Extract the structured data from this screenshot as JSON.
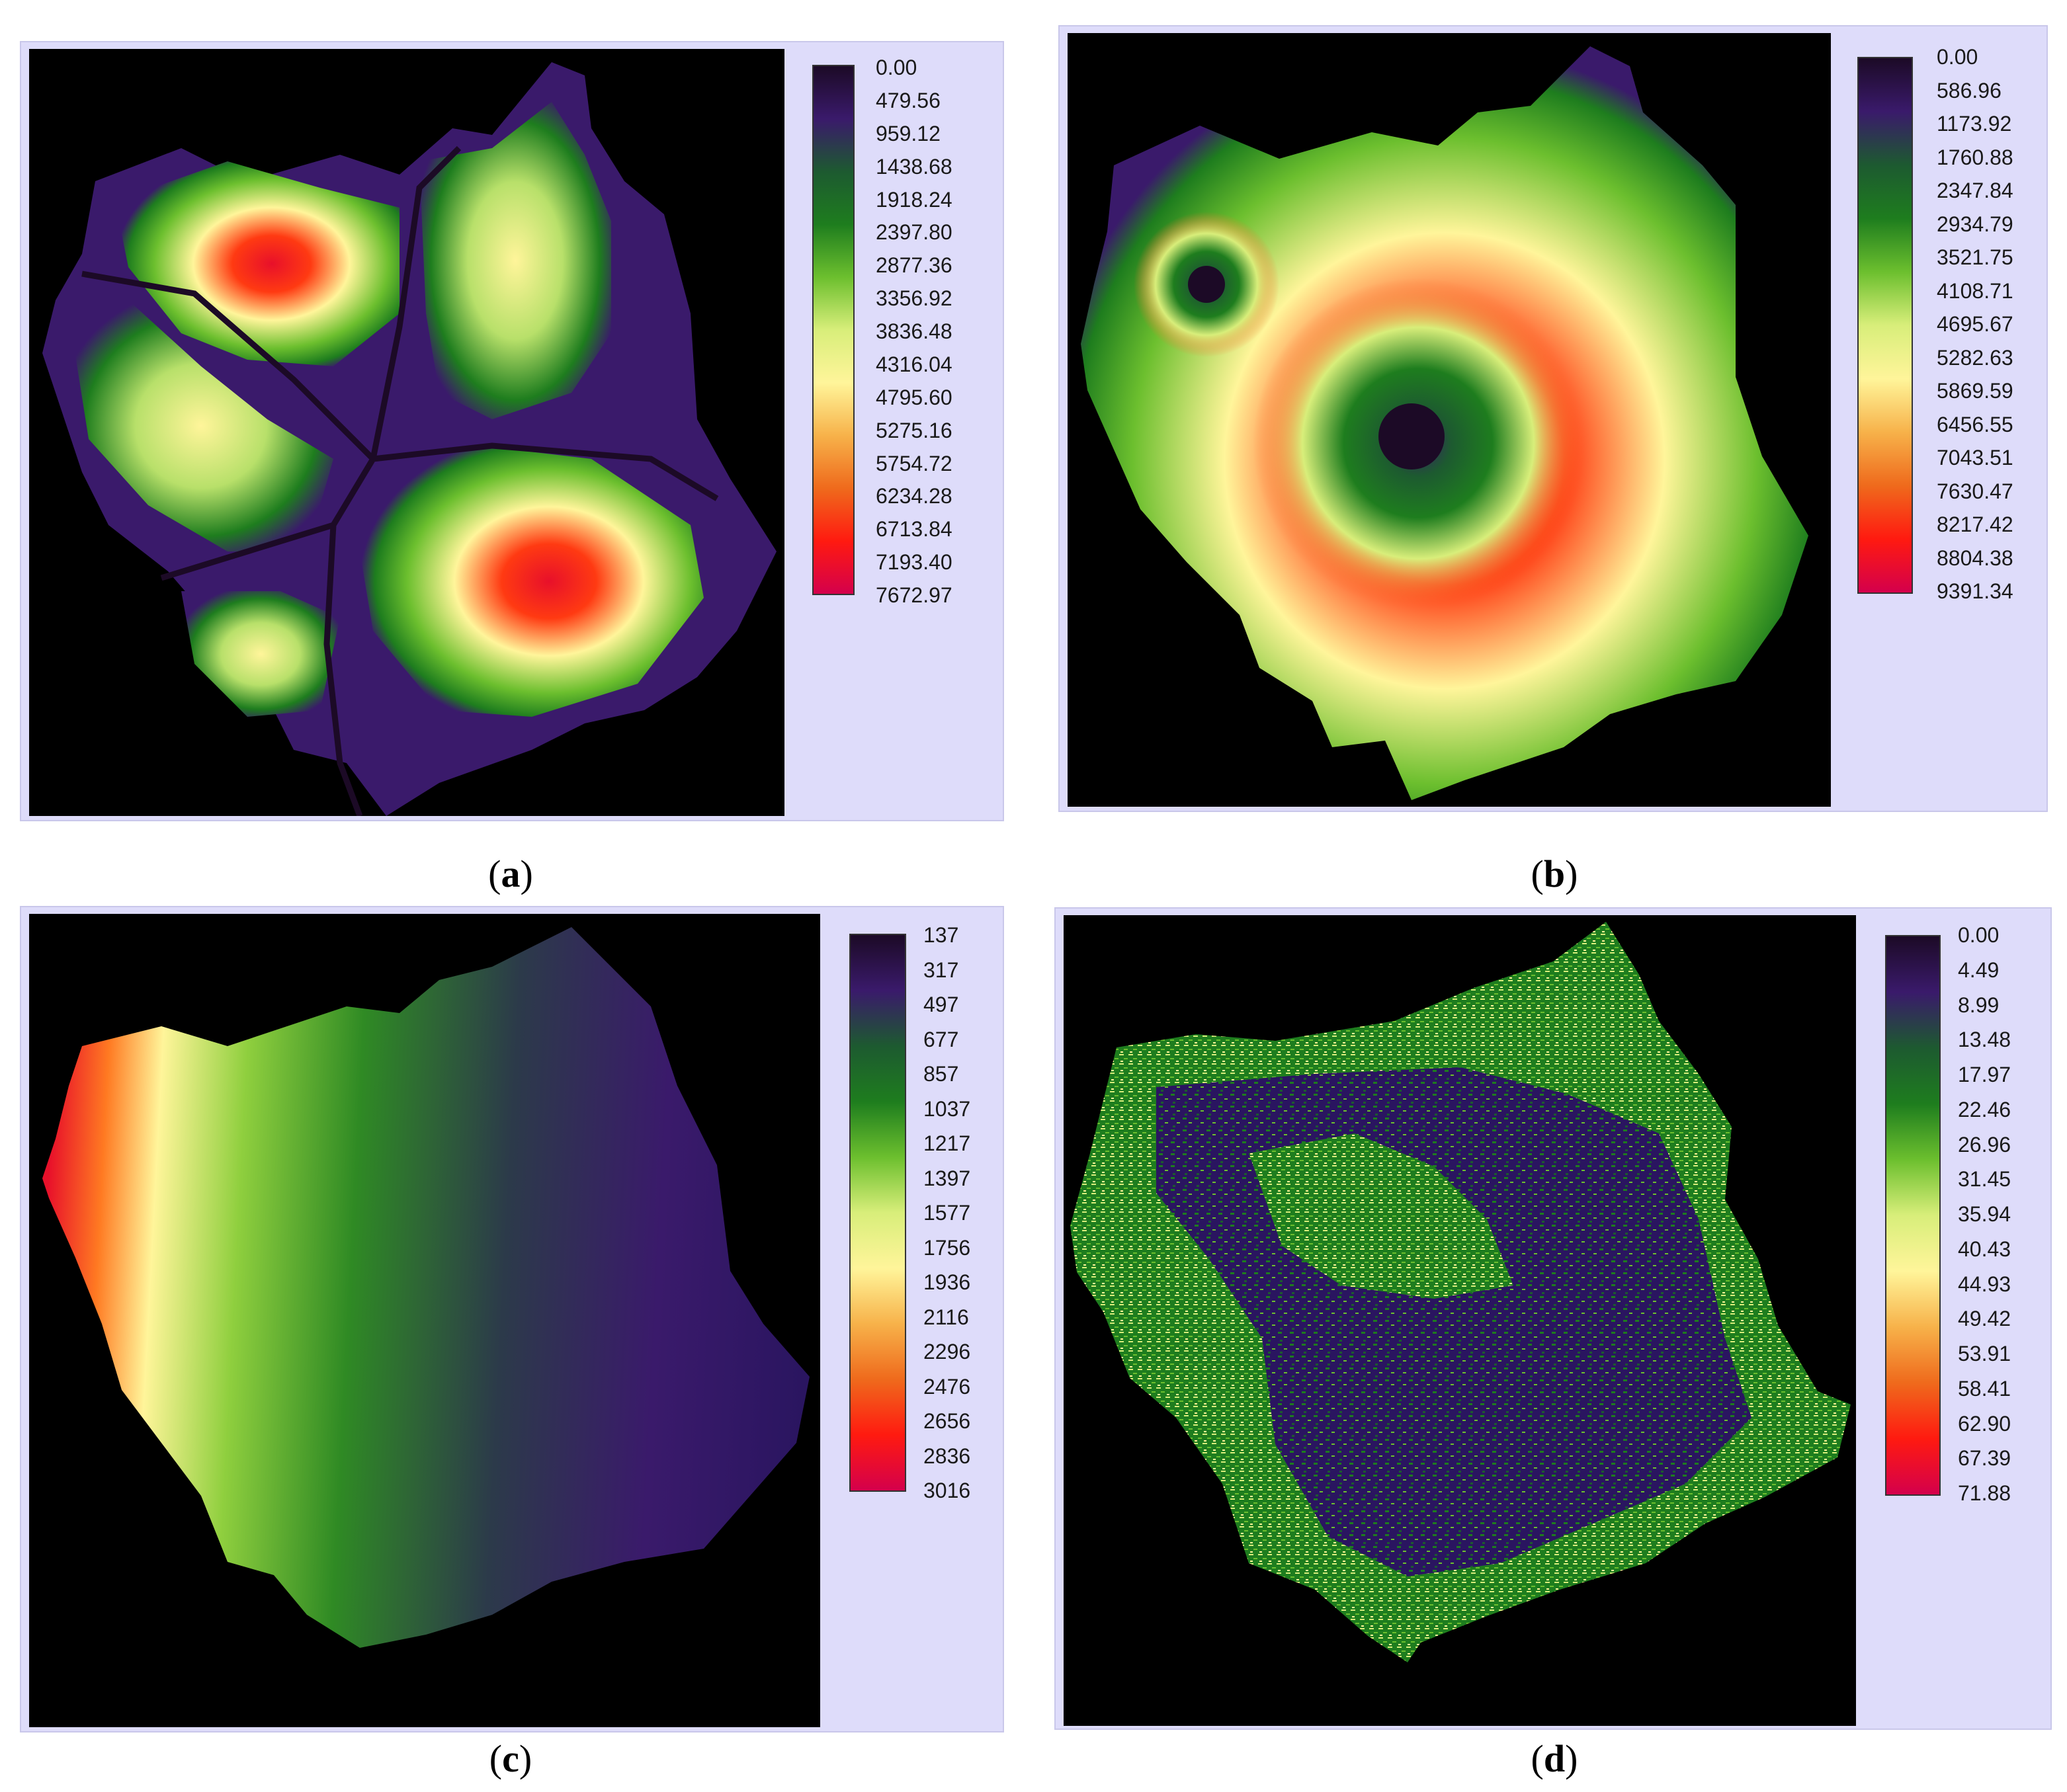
{
  "panels": [
    {
      "caption_letter": "a",
      "legend": [
        "0.00",
        "479.56",
        "959.12",
        "1438.68",
        "1918.24",
        "2397.80",
        "2877.36",
        "3356.92",
        "3836.48",
        "4316.04",
        "4795.60",
        "5275.16",
        "5754.72",
        "6234.28",
        "6713.84",
        "7193.40",
        "7672.97"
      ]
    },
    {
      "caption_letter": "b",
      "legend": [
        "0.00",
        "586.96",
        "1173.92",
        "1760.88",
        "2347.84",
        "2934.79",
        "3521.75",
        "4108.71",
        "4695.67",
        "5282.63",
        "5869.59",
        "6456.55",
        "7043.51",
        "7630.47",
        "8217.42",
        "8804.38",
        "9391.34"
      ]
    },
    {
      "caption_letter": "c",
      "legend": [
        "137",
        "317",
        "497",
        "677",
        "857",
        "1037",
        "1217",
        "1397",
        "1577",
        "1756",
        "1936",
        "2116",
        "2296",
        "2476",
        "2656",
        "2836",
        "3016"
      ]
    },
    {
      "caption_letter": "d",
      "legend": [
        "0.00",
        "4.49",
        "8.99",
        "13.48",
        "17.97",
        "22.46",
        "26.96",
        "31.45",
        "35.94",
        "40.43",
        "44.93",
        "49.42",
        "53.91",
        "58.41",
        "62.90",
        "67.39",
        "71.88"
      ]
    }
  ],
  "colors": {
    "panel_background": "#dedcfa",
    "map_background": "#000000",
    "ramp": [
      "#1c0a26",
      "#3a1a6b",
      "#1d5a30",
      "#1e7d1e",
      "#6cbf2e",
      "#d8ee7a",
      "#fff59a",
      "#f7b24a",
      "#ef6a1c",
      "#ff1a10",
      "#d4004c"
    ]
  }
}
